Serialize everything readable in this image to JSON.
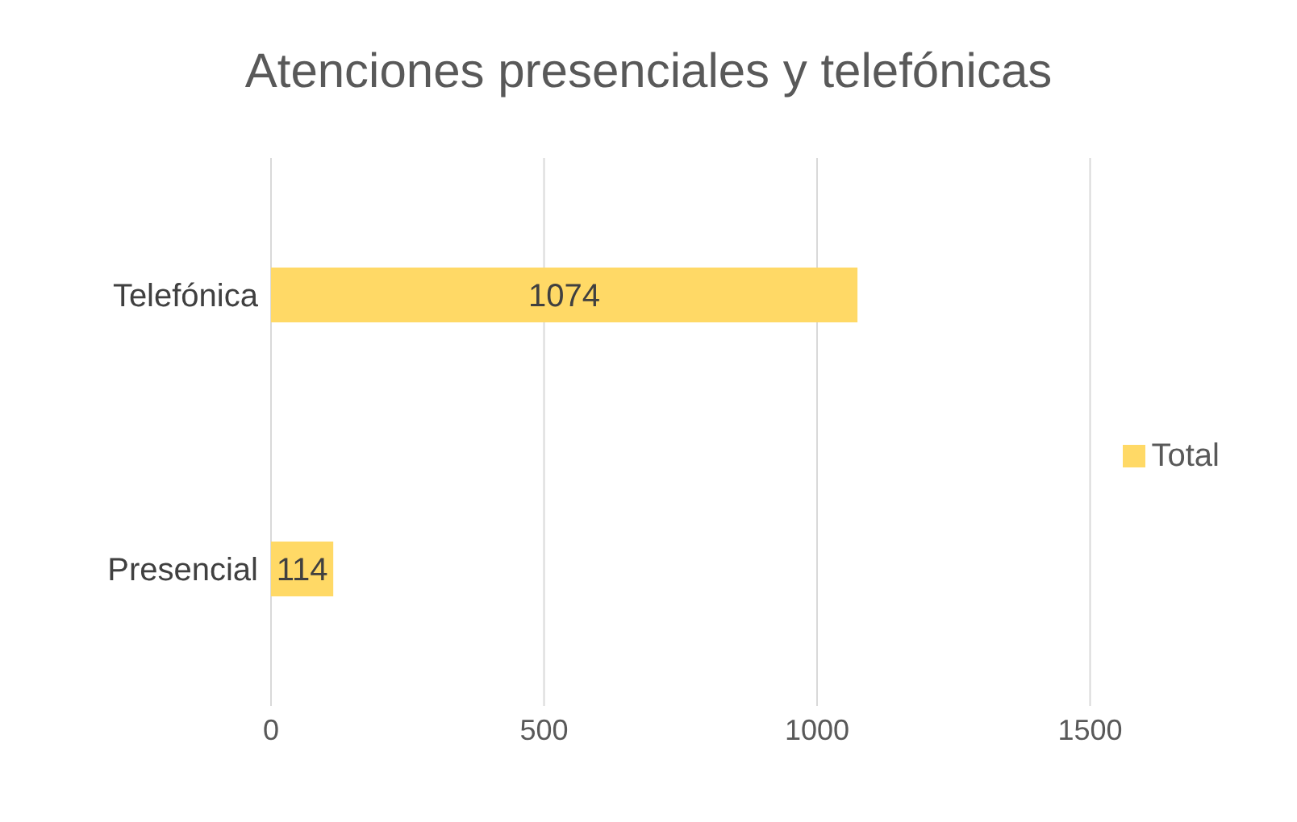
{
  "chart_data": {
    "type": "bar",
    "orientation": "horizontal",
    "title": "Atenciones presenciales y telefónicas",
    "categories": [
      "Telefónica",
      "Presencial"
    ],
    "series": [
      {
        "name": "Total",
        "color": "#ffd966",
        "values": [
          1074,
          114
        ]
      }
    ],
    "xlim": [
      0,
      1500
    ],
    "xticks": [
      0,
      500,
      1000,
      1500
    ],
    "grid": "x",
    "legend": "right",
    "data_labels": true
  }
}
